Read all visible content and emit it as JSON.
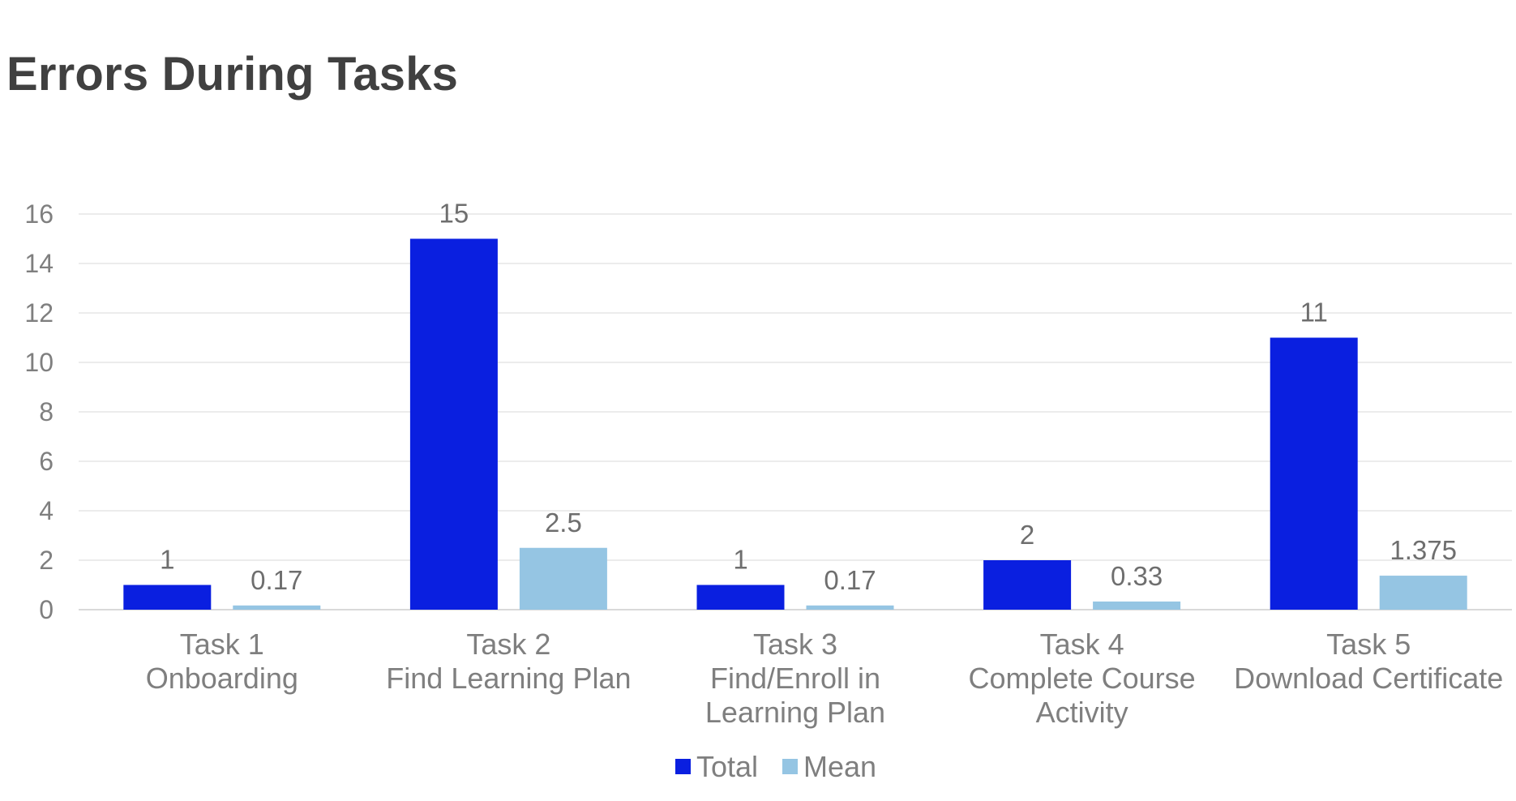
{
  "chart_data": {
    "type": "bar",
    "title": "Errors During Tasks",
    "xlabel": "",
    "ylabel": "",
    "ylim": [
      0,
      16
    ],
    "yticks": [
      0,
      2,
      4,
      6,
      8,
      10,
      12,
      14,
      16
    ],
    "grid": true,
    "legend_position": "bottom",
    "categories": [
      [
        "Task 1",
        "Onboarding"
      ],
      [
        "Task 2",
        "Find Learning Plan"
      ],
      [
        "Task 3",
        "Find/Enroll in",
        "Learning Plan"
      ],
      [
        "Task 4",
        "Complete Course",
        "Activity"
      ],
      [
        "Task 5",
        "Download Certificate"
      ]
    ],
    "series": [
      {
        "name": "Total",
        "color": "#0a1fe0",
        "values": [
          1,
          15,
          1,
          2,
          11
        ],
        "labels": [
          "1",
          "15",
          "1",
          "2",
          "11"
        ]
      },
      {
        "name": "Mean",
        "color": "#95c5e3",
        "values": [
          0.17,
          2.5,
          0.17,
          0.33,
          1.375
        ],
        "labels": [
          "0.17",
          "2.5",
          "0.17",
          "0.33",
          "1.375"
        ]
      }
    ]
  }
}
